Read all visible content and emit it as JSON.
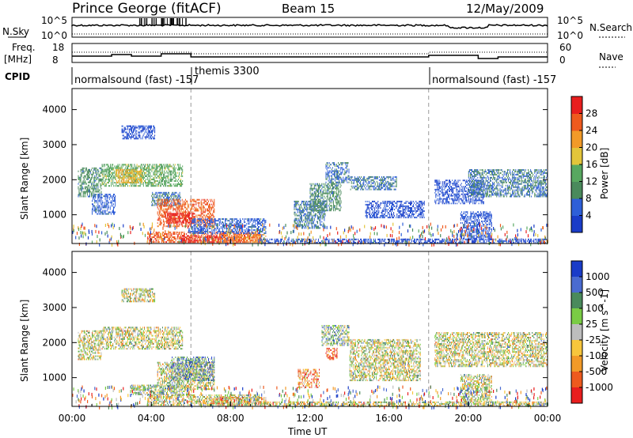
{
  "header": {
    "station": "Prince George (fitACF)",
    "beam": "Beam 15",
    "date": "12/May/2009"
  },
  "nsky_panel": {
    "left_label": "N.Sky",
    "right_label": "N.Search",
    "left_ticks": [
      "10^5",
      "10^0"
    ],
    "right_ticks": [
      "10^5",
      "10^0"
    ]
  },
  "freq_panel": {
    "left_label_1": "Freq.",
    "left_label_2": "[MHz]",
    "right_label": "Nave",
    "left_ticks": [
      "18",
      "8"
    ],
    "right_ticks": [
      "60",
      "0"
    ]
  },
  "cpid": {
    "label": "CPID",
    "segments": [
      {
        "text": "normalsound (fast) -157",
        "start": 0.0
      },
      {
        "text": "themis 3300",
        "start": 6.0
      },
      {
        "text": "normalsound (fast) -157",
        "start": 18.0
      }
    ]
  },
  "colors": {
    "power": [
      "#1a3cc8",
      "#2e5fd8",
      "#4a8a5c",
      "#58a860",
      "#e3c53a",
      "#f29a28",
      "#ee5a1e",
      "#e81e1e"
    ],
    "velocity": [
      "#e81e1e",
      "#ee5a1e",
      "#f29a28",
      "#f7c63c",
      "#bdbdbd",
      "#7acc45",
      "#4a8a5c",
      "#4a6bd0",
      "#1a3cc8"
    ]
  },
  "chart_data": [
    {
      "type": "heatmap",
      "title": "",
      "xlabel": "Time UT",
      "ylabel": "Slant Range [km]",
      "xlim": [
        0,
        24
      ],
      "ylim": [
        180,
        4600
      ],
      "x_ticks": [
        "00:00",
        "04:00",
        "08:00",
        "12:00",
        "16:00",
        "20:00",
        "00:00"
      ],
      "y_ticks": [
        "1000",
        "2000",
        "3000",
        "4000"
      ],
      "y_tick_values": [
        1000,
        2000,
        3000,
        4000
      ],
      "colorbar": {
        "label": "Power [dB]",
        "ticks": [
          "4",
          "8",
          "12",
          "16",
          "20",
          "24",
          "28"
        ],
        "range": [
          0,
          32
        ]
      },
      "regions": [
        {
          "t0": 0.3,
          "t1": 1.5,
          "r0": 1500,
          "r1": 2350,
          "v": 10
        },
        {
          "t0": 1.5,
          "t1": 5.6,
          "r0": 1800,
          "r1": 2450,
          "v": 14
        },
        {
          "t0": 2.2,
          "t1": 3.6,
          "r0": 1900,
          "r1": 2300,
          "v": 20
        },
        {
          "t0": 1.0,
          "t1": 2.2,
          "r0": 1000,
          "r1": 1600,
          "v": 6
        },
        {
          "t0": 2.5,
          "t1": 4.2,
          "r0": 3150,
          "r1": 3550,
          "v": 4
        },
        {
          "t0": 4.0,
          "t1": 5.5,
          "r0": 1250,
          "r1": 1650,
          "v": 8
        },
        {
          "t0": 4.3,
          "t1": 7.2,
          "r0": 650,
          "r1": 1450,
          "v": 26
        },
        {
          "t0": 4.8,
          "t1": 6.2,
          "r0": 750,
          "r1": 1050,
          "v": 30
        },
        {
          "t0": 3.8,
          "t1": 9.5,
          "r0": 200,
          "r1": 520,
          "v": 26
        },
        {
          "t0": 5.5,
          "t1": 7.5,
          "r0": 200,
          "r1": 420,
          "v": 30
        },
        {
          "t0": 6.0,
          "t1": 9.8,
          "r0": 450,
          "r1": 900,
          "v": 6
        },
        {
          "t0": 7.5,
          "t1": 9.8,
          "r0": 200,
          "r1": 450,
          "v": 24
        },
        {
          "t0": 11.2,
          "t1": 12.8,
          "r0": 600,
          "r1": 1400,
          "v": 8
        },
        {
          "t0": 12.0,
          "t1": 13.6,
          "r0": 1100,
          "r1": 1900,
          "v": 10
        },
        {
          "t0": 12.8,
          "t1": 14.0,
          "r0": 1900,
          "r1": 2500,
          "v": 7
        },
        {
          "t0": 14.0,
          "t1": 16.4,
          "r0": 1700,
          "r1": 2100,
          "v": 8
        },
        {
          "t0": 14.8,
          "t1": 17.8,
          "r0": 900,
          "r1": 1400,
          "v": 4
        },
        {
          "t0": 18.3,
          "t1": 20.8,
          "r0": 1300,
          "r1": 2000,
          "v": 4
        },
        {
          "t0": 20.0,
          "t1": 24.0,
          "r0": 1500,
          "r1": 2300,
          "v": 8
        },
        {
          "t0": 19.6,
          "t1": 21.2,
          "r0": 300,
          "r1": 1100,
          "v": 5
        },
        {
          "t0": 9.5,
          "t1": 24.0,
          "r0": 180,
          "r1": 320,
          "v": 4
        }
      ]
    },
    {
      "type": "heatmap",
      "title": "",
      "xlabel": "Time UT",
      "ylabel": "Slant Range [km]",
      "xlim": [
        0,
        24
      ],
      "ylim": [
        180,
        4600
      ],
      "x_ticks": [
        "00:00",
        "04:00",
        "08:00",
        "12:00",
        "16:00",
        "20:00",
        "00:00"
      ],
      "y_ticks": [
        "1000",
        "2000",
        "3000",
        "4000"
      ],
      "y_tick_values": [
        1000,
        2000,
        3000,
        4000
      ],
      "colorbar": {
        "label": "Velocity [m s^-1]",
        "ticks": [
          "1000",
          "500",
          "100",
          "25",
          "-25",
          "-100",
          "-500",
          "-1000"
        ]
      },
      "regions": [
        {
          "t0": 0.3,
          "t1": 1.5,
          "r0": 1500,
          "r1": 2350,
          "v": 4
        },
        {
          "t0": 1.5,
          "t1": 5.6,
          "r0": 1800,
          "r1": 2450,
          "v": 4
        },
        {
          "t0": 2.5,
          "t1": 4.2,
          "r0": 3150,
          "r1": 3550,
          "v": 4
        },
        {
          "t0": 4.3,
          "t1": 7.2,
          "r0": 650,
          "r1": 1450,
          "v": 4
        },
        {
          "t0": 5.0,
          "t1": 7.2,
          "r0": 900,
          "r1": 1600,
          "v": 6
        },
        {
          "t0": 3.0,
          "t1": 6.0,
          "r0": 500,
          "r1": 800,
          "v": 5
        },
        {
          "t0": 3.8,
          "t1": 9.5,
          "r0": 200,
          "r1": 520,
          "v": 4
        },
        {
          "t0": 7.0,
          "t1": 9.8,
          "r0": 200,
          "r1": 450,
          "v": 3
        },
        {
          "t0": 11.4,
          "t1": 12.5,
          "r0": 700,
          "r1": 1250,
          "v": 2
        },
        {
          "t0": 12.8,
          "t1": 13.4,
          "r0": 1500,
          "r1": 1850,
          "v": 1
        },
        {
          "t0": 12.6,
          "t1": 14.0,
          "r0": 1900,
          "r1": 2500,
          "v": 5
        },
        {
          "t0": 14.0,
          "t1": 17.6,
          "r0": 900,
          "r1": 2100,
          "v": 4
        },
        {
          "t0": 18.3,
          "t1": 24.0,
          "r0": 1300,
          "r1": 2300,
          "v": 4
        },
        {
          "t0": 19.6,
          "t1": 21.2,
          "r0": 300,
          "r1": 1100,
          "v": 4
        },
        {
          "t0": 9.5,
          "t1": 24.0,
          "r0": 180,
          "r1": 320,
          "v": 4
        }
      ]
    }
  ]
}
